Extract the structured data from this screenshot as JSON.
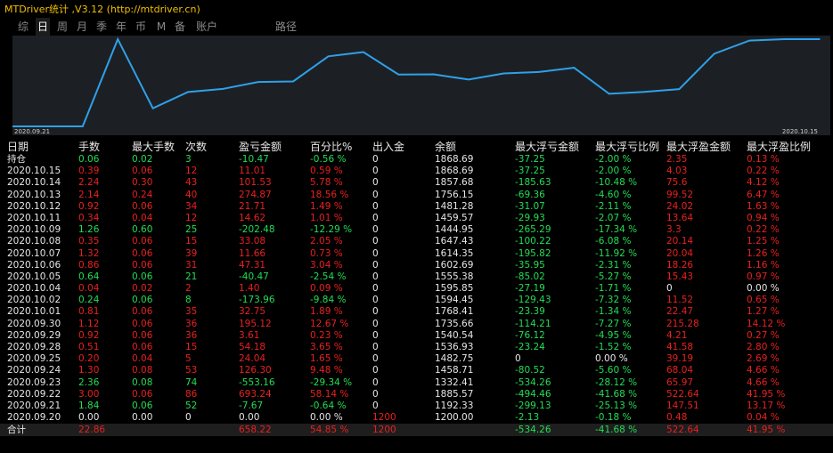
{
  "app": {
    "title": "MTDriver统计 ,V3.12 (http://mtdriver.cn)"
  },
  "tabs": [
    {
      "label": "综",
      "active": false
    },
    {
      "label": "日",
      "active": true
    },
    {
      "label": "周",
      "active": false
    },
    {
      "label": "月",
      "active": false
    },
    {
      "label": "季",
      "active": false
    },
    {
      "label": "年",
      "active": false
    },
    {
      "label": "币",
      "active": false
    },
    {
      "label": "M",
      "active": false
    },
    {
      "label": "备",
      "active": false
    },
    {
      "label": "账户",
      "active": false
    },
    {
      "label": "路径",
      "active": false
    }
  ],
  "chart_data": {
    "type": "line",
    "x_start_label": "2020.09.21",
    "x_end_label": "2020.10.15",
    "line_color": "#2fa0ea",
    "values": [
      1192.33,
      1192.33,
      1192.33,
      1885.57,
      1332.41,
      1458.71,
      1482.75,
      1536.93,
      1540.54,
      1735.66,
      1768.41,
      1594.45,
      1595.85,
      1555.38,
      1602.69,
      1614.35,
      1647.43,
      1444.95,
      1459.57,
      1481.28,
      1756.15,
      1857.68,
      1868.69,
      1868.69
    ],
    "ylim": [
      1192.33,
      1868.69
    ]
  },
  "table": {
    "headers": [
      "日期",
      "手数",
      "最大手数",
      "次数",
      "盈亏金额",
      "百分比%",
      "出入金",
      "余额",
      "最大浮亏金额",
      "最大浮亏比例",
      "最大浮盈金额",
      "最大浮盈比例"
    ],
    "rows": [
      {
        "c": [
          "持仓",
          "0.06",
          "0.02",
          "3",
          "-10.47",
          "-0.56 %",
          "0",
          "1868.69",
          "-37.25",
          "-2.00 %",
          "2.35",
          "0.13 %"
        ],
        "t": [
          "white",
          "green",
          "green",
          "green",
          "green",
          "green",
          "white",
          "white",
          "green",
          "green",
          "red",
          "red"
        ]
      },
      {
        "c": [
          "2020.10.15",
          "0.39",
          "0.06",
          "12",
          "11.01",
          "0.59 %",
          "0",
          "1868.69",
          "-37.25",
          "-2.00 %",
          "4.03",
          "0.22 %"
        ],
        "t": [
          "white",
          "red",
          "red",
          "red",
          "red",
          "red",
          "white",
          "white",
          "green",
          "green",
          "red",
          "red"
        ]
      },
      {
        "c": [
          "2020.10.14",
          "2.24",
          "0.30",
          "43",
          "101.53",
          "5.78 %",
          "0",
          "1857.68",
          "-185.63",
          "-10.48 %",
          "75.6",
          "4.12 %"
        ],
        "t": [
          "white",
          "red",
          "red",
          "red",
          "red",
          "red",
          "white",
          "white",
          "green",
          "green",
          "red",
          "red"
        ]
      },
      {
        "c": [
          "2020.10.13",
          "2.14",
          "0.24",
          "40",
          "274.87",
          "18.56 %",
          "0",
          "1756.15",
          "-69.36",
          "-4.60 %",
          "99.52",
          "6.47 %"
        ],
        "t": [
          "white",
          "red",
          "red",
          "red",
          "red",
          "red",
          "white",
          "white",
          "green",
          "green",
          "red",
          "red"
        ]
      },
      {
        "c": [
          "2020.10.12",
          "0.92",
          "0.06",
          "34",
          "21.71",
          "1.49 %",
          "0",
          "1481.28",
          "-31.07",
          "-2.11 %",
          "24.02",
          "1.63 %"
        ],
        "t": [
          "white",
          "red",
          "red",
          "red",
          "red",
          "red",
          "white",
          "white",
          "green",
          "green",
          "red",
          "red"
        ]
      },
      {
        "c": [
          "2020.10.11",
          "0.34",
          "0.04",
          "12",
          "14.62",
          "1.01 %",
          "0",
          "1459.57",
          "-29.93",
          "-2.07 %",
          "13.64",
          "0.94 %"
        ],
        "t": [
          "white",
          "red",
          "red",
          "red",
          "red",
          "red",
          "white",
          "white",
          "green",
          "green",
          "red",
          "red"
        ]
      },
      {
        "c": [
          "2020.10.09",
          "1.26",
          "0.60",
          "25",
          "-202.48",
          "-12.29 %",
          "0",
          "1444.95",
          "-265.29",
          "-17.34 %",
          "3.3",
          "0.22 %"
        ],
        "t": [
          "white",
          "green",
          "green",
          "green",
          "green",
          "green",
          "white",
          "white",
          "green",
          "green",
          "red",
          "red"
        ]
      },
      {
        "c": [
          "2020.10.08",
          "0.35",
          "0.06",
          "15",
          "33.08",
          "2.05 %",
          "0",
          "1647.43",
          "-100.22",
          "-6.08 %",
          "20.14",
          "1.25 %"
        ],
        "t": [
          "white",
          "red",
          "red",
          "red",
          "red",
          "red",
          "white",
          "white",
          "green",
          "green",
          "red",
          "red"
        ]
      },
      {
        "c": [
          "2020.10.07",
          "1.32",
          "0.06",
          "39",
          "11.66",
          "0.73 %",
          "0",
          "1614.35",
          "-195.82",
          "-11.92 %",
          "20.04",
          "1.26 %"
        ],
        "t": [
          "white",
          "red",
          "red",
          "red",
          "red",
          "red",
          "white",
          "white",
          "green",
          "green",
          "red",
          "red"
        ]
      },
      {
        "c": [
          "2020.10.06",
          "0.86",
          "0.06",
          "31",
          "47.31",
          "3.04 %",
          "0",
          "1602.69",
          "-35.95",
          "-2.31 %",
          "18.26",
          "1.16 %"
        ],
        "t": [
          "white",
          "red",
          "red",
          "red",
          "red",
          "red",
          "white",
          "white",
          "green",
          "green",
          "red",
          "red"
        ]
      },
      {
        "c": [
          "2020.10.05",
          "0.64",
          "0.06",
          "21",
          "-40.47",
          "-2.54 %",
          "0",
          "1555.38",
          "-85.02",
          "-5.27 %",
          "15.43",
          "0.97 %"
        ],
        "t": [
          "white",
          "green",
          "green",
          "green",
          "green",
          "green",
          "white",
          "white",
          "green",
          "green",
          "red",
          "red"
        ]
      },
      {
        "c": [
          "2020.10.04",
          "0.04",
          "0.02",
          "2",
          "1.40",
          "0.09 %",
          "0",
          "1595.85",
          "-27.19",
          "-1.71 %",
          "0",
          "0.00 %"
        ],
        "t": [
          "white",
          "red",
          "red",
          "red",
          "red",
          "red",
          "white",
          "white",
          "green",
          "green",
          "white",
          "white"
        ]
      },
      {
        "c": [
          "2020.10.02",
          "0.24",
          "0.06",
          "8",
          "-173.96",
          "-9.84 %",
          "0",
          "1594.45",
          "-129.43",
          "-7.32 %",
          "11.52",
          "0.65 %"
        ],
        "t": [
          "white",
          "green",
          "green",
          "green",
          "green",
          "green",
          "white",
          "white",
          "green",
          "green",
          "red",
          "red"
        ]
      },
      {
        "c": [
          "2020.10.01",
          "0.81",
          "0.06",
          "35",
          "32.75",
          "1.89 %",
          "0",
          "1768.41",
          "-23.39",
          "-1.34 %",
          "22.47",
          "1.27 %"
        ],
        "t": [
          "white",
          "red",
          "red",
          "red",
          "red",
          "red",
          "white",
          "white",
          "green",
          "green",
          "red",
          "red"
        ]
      },
      {
        "c": [
          "2020.09.30",
          "1.12",
          "0.06",
          "36",
          "195.12",
          "12.67 %",
          "0",
          "1735.66",
          "-114.21",
          "-7.27 %",
          "215.28",
          "14.12 %"
        ],
        "t": [
          "white",
          "red",
          "red",
          "red",
          "red",
          "red",
          "white",
          "white",
          "green",
          "green",
          "red",
          "red"
        ]
      },
      {
        "c": [
          "2020.09.29",
          "0.92",
          "0.06",
          "36",
          "3.61",
          "0.23 %",
          "0",
          "1540.54",
          "-76.12",
          "-4.95 %",
          "4.21",
          "0.27 %"
        ],
        "t": [
          "white",
          "red",
          "red",
          "red",
          "red",
          "red",
          "white",
          "white",
          "green",
          "green",
          "red",
          "red"
        ]
      },
      {
        "c": [
          "2020.09.28",
          "0.51",
          "0.06",
          "15",
          "54.18",
          "3.65 %",
          "0",
          "1536.93",
          "-23.24",
          "-1.52 %",
          "41.58",
          "2.80 %"
        ],
        "t": [
          "white",
          "red",
          "red",
          "red",
          "red",
          "red",
          "white",
          "white",
          "green",
          "green",
          "red",
          "red"
        ]
      },
      {
        "c": [
          "2020.09.25",
          "0.20",
          "0.04",
          "5",
          "24.04",
          "1.65 %",
          "0",
          "1482.75",
          "0",
          "0.00 %",
          "39.19",
          "2.69 %"
        ],
        "t": [
          "white",
          "red",
          "red",
          "red",
          "red",
          "red",
          "white",
          "white",
          "white",
          "white",
          "red",
          "red"
        ]
      },
      {
        "c": [
          "2020.09.24",
          "1.30",
          "0.08",
          "53",
          "126.30",
          "9.48 %",
          "0",
          "1458.71",
          "-80.52",
          "-5.60 %",
          "68.04",
          "4.66 %"
        ],
        "t": [
          "white",
          "red",
          "red",
          "red",
          "red",
          "red",
          "white",
          "white",
          "green",
          "green",
          "red",
          "red"
        ]
      },
      {
        "c": [
          "2020.09.23",
          "2.36",
          "0.08",
          "74",
          "-553.16",
          "-29.34 %",
          "0",
          "1332.41",
          "-534.26",
          "-28.12 %",
          "65.97",
          "4.66 %"
        ],
        "t": [
          "white",
          "green",
          "green",
          "green",
          "green",
          "green",
          "white",
          "white",
          "green",
          "green",
          "red",
          "red"
        ]
      },
      {
        "c": [
          "2020.09.22",
          "3.00",
          "0.06",
          "86",
          "693.24",
          "58.14 %",
          "0",
          "1885.57",
          "-494.46",
          "-41.68 %",
          "522.64",
          "41.95 %"
        ],
        "t": [
          "white",
          "red",
          "red",
          "red",
          "red",
          "red",
          "white",
          "white",
          "green",
          "green",
          "red",
          "red"
        ]
      },
      {
        "c": [
          "2020.09.21",
          "1.84",
          "0.06",
          "52",
          "-7.67",
          "-0.64 %",
          "0",
          "1192.33",
          "-299.13",
          "-25.13 %",
          "147.51",
          "13.17 %"
        ],
        "t": [
          "white",
          "green",
          "green",
          "green",
          "green",
          "green",
          "white",
          "white",
          "green",
          "green",
          "red",
          "red"
        ]
      },
      {
        "c": [
          "2020.09.20",
          "0.00",
          "0.00",
          "0",
          "0.00",
          "0.00 %",
          "1200",
          "1200.00",
          "-2.13",
          "-0.18 %",
          "0.48",
          "0.04 %"
        ],
        "t": [
          "white",
          "white",
          "white",
          "white",
          "white",
          "white",
          "red",
          "white",
          "green",
          "green",
          "red",
          "red"
        ]
      }
    ],
    "total": {
      "c": [
        "合计",
        "22.86",
        "",
        "",
        "658.22",
        "54.85 %",
        "1200",
        "",
        "-534.26",
        "-41.68 %",
        "522.64",
        "41.95 %"
      ],
      "t": [
        "white",
        "red",
        "red",
        "red",
        "red",
        "red",
        "red",
        "white",
        "green",
        "green",
        "red",
        "red"
      ]
    }
  }
}
